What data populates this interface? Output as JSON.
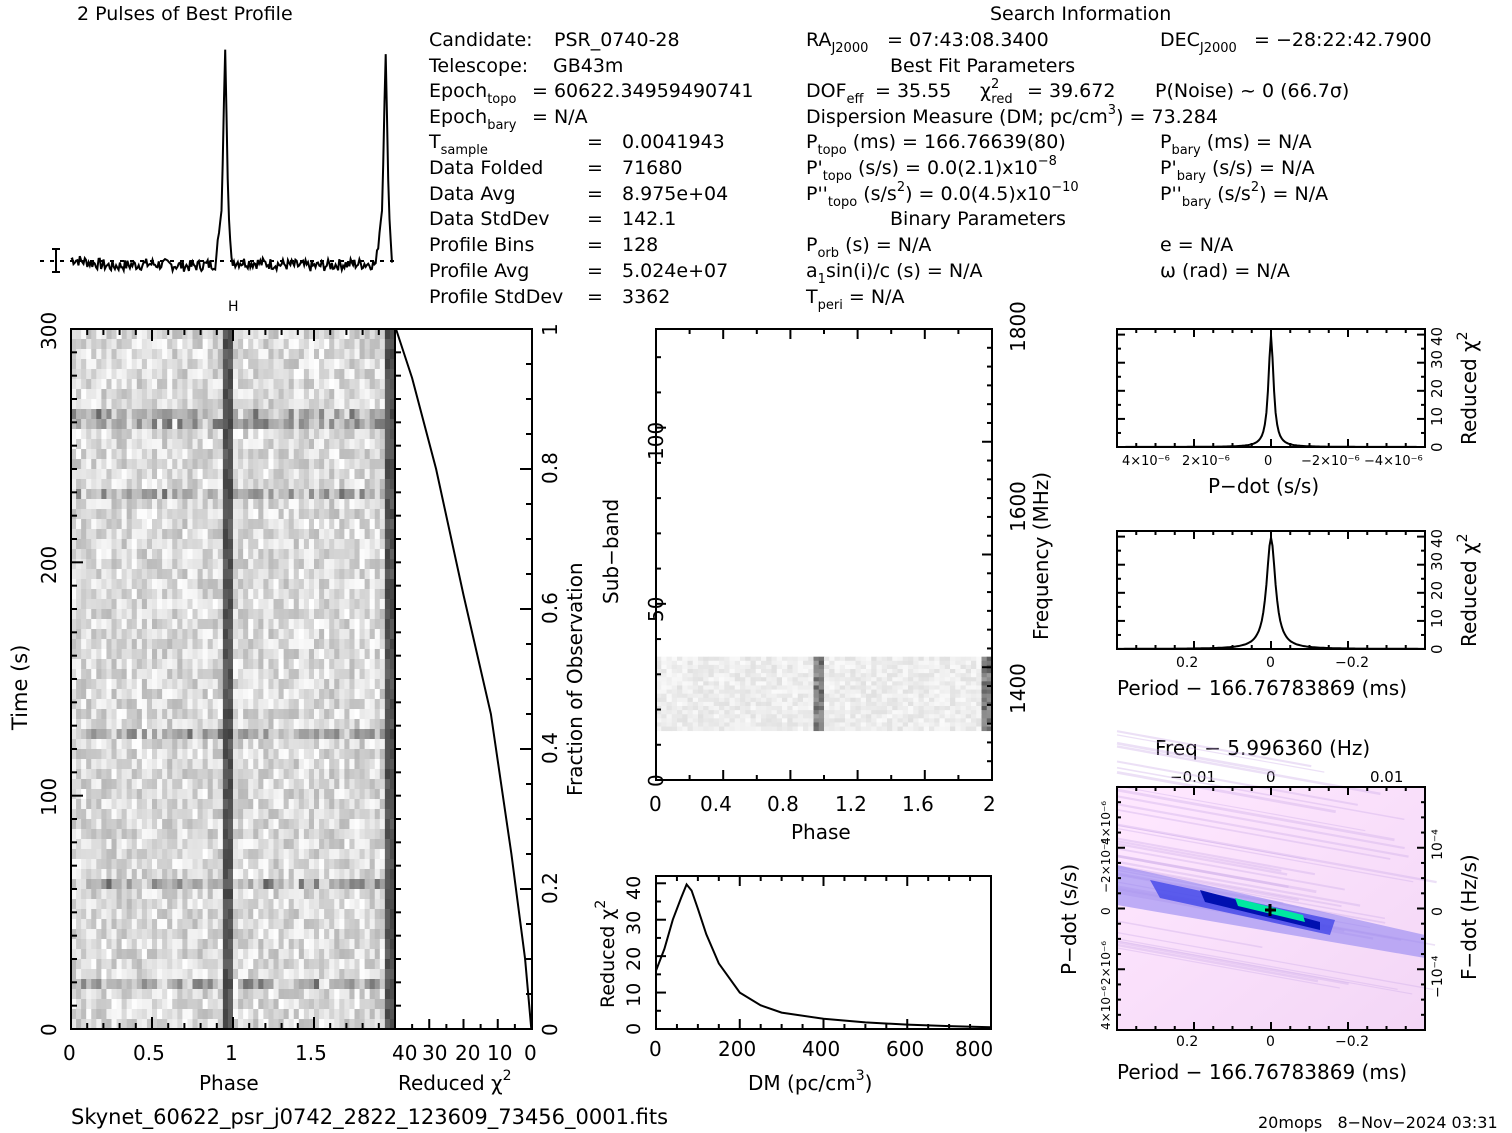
{
  "title_left": "2 Pulses of Best Profile",
  "title_right": "Search Information",
  "info": {
    "candidate_label": "Candidate:",
    "candidate": "PSR_0740-28",
    "telescope_label": "Telescope:",
    "telescope": "GB43m",
    "epoch_topo": "= 60622.34959490741",
    "epoch_bary": "= N/A",
    "t_sample": "0.0041943",
    "data_folded_label": "Data Folded",
    "data_folded": "71680",
    "data_avg_label": "Data Avg",
    "data_avg": "8.975e+04",
    "data_std_label": "Data StdDev",
    "data_std": "142.1",
    "profile_bins_label": "Profile Bins",
    "profile_bins": "128",
    "profile_avg_label": "Profile Avg",
    "profile_avg": "5.024e+07",
    "profile_std_label": "Profile StdDev",
    "profile_std": "3362",
    "ra": "= 07:43:08.3400",
    "dec": "= −28:22:42.7900",
    "best_fit_header": "Best Fit Parameters",
    "dof_eff": "= 35.55",
    "chi2_red": "= 39.672",
    "p_noise": "P(Noise) ~ 0   (66.7σ)",
    "dm_line": "Dispersion Measure (DM; pc/cm",
    "dm_value": ") = 73.284",
    "p_topo": " (ms) =  166.76639(80)",
    "p_bary": " (ms) = N/A",
    "pd_topo": " (s/s) = 0.0(2.1)x10",
    "pd_topo_exp": "−8",
    "pd_bary": " (s/s) = N/A",
    "pdd_topo": " (s/s",
    "pdd_topo2": ") = 0.0(4.5)x10",
    "pdd_topo_exp": "−10",
    "pdd_bary": " (s/s",
    "pdd_bary2": ") = N/A",
    "binary_header": "Binary Parameters",
    "p_orb": " (s) = N/A",
    "e": "e = N/A",
    "a1sini": "sin(i)/c (s) = N/A",
    "omega": "ω (rad) = N/A",
    "t_peri": " = N/A",
    "equals": "="
  },
  "footer_file": "Skynet_60622_psr_j0742_2822_123609_73456_0001.fits",
  "footer_right": "20mops   8−Nov−2024 03:31",
  "axes": {
    "phase": "Phase",
    "time": "Time (s)",
    "reduced_chi2": "Reduced χ",
    "fraction_obs": "Fraction of Observation",
    "sub_band": "Sub−band",
    "frequency": "Frequency (MHz)",
    "dm": "DM (pc/cm",
    "pdot": "P−dot (s/s)",
    "period": "Period − 166.76783869 (ms)",
    "freq_top": "Freq − 5.996360 (Hz)",
    "fdot": "F−dot (Hz/s)"
  },
  "chart_data": [
    {
      "type": "line",
      "name": "profile",
      "x": [
        0,
        0.25,
        0.5,
        0.75,
        0.9,
        0.94,
        0.96,
        0.98,
        1.0,
        1.25,
        1.5,
        1.75,
        1.9,
        1.94,
        1.96,
        1.98,
        2.0
      ],
      "y": [
        0.08,
        0.05,
        0.06,
        0.05,
        0.06,
        0.3,
        1.0,
        0.3,
        0.07,
        0.06,
        0.05,
        0.06,
        0.06,
        0.3,
        0.98,
        0.3,
        0.07
      ]
    },
    {
      "type": "heatmap",
      "name": "time-phase",
      "xlim": [
        0,
        2
      ],
      "ylim": [
        0,
        300
      ],
      "xticks": [
        "0",
        "0.5",
        "1",
        "1.5"
      ],
      "yticks": [
        "0",
        "100",
        "200",
        "300"
      ]
    },
    {
      "type": "line",
      "name": "reduced-chi2-vs-fraction",
      "xlim": [
        40,
        0
      ],
      "ylim": [
        0,
        1
      ],
      "xticks": [
        "40",
        "30",
        "20",
        "10",
        "0"
      ],
      "yticks": [
        "0",
        "0.2",
        "0.4",
        "0.6",
        "0.8",
        "1"
      ],
      "x": [
        0.2,
        2,
        6,
        12,
        20,
        28,
        35,
        39.7
      ],
      "y": [
        0,
        0.1,
        0.25,
        0.45,
        0.62,
        0.8,
        0.93,
        1.0
      ]
    },
    {
      "type": "heatmap",
      "name": "subband-phase",
      "xlim": [
        0,
        2
      ],
      "ylim": [
        0,
        128
      ],
      "xticks": [
        "0",
        "0.4",
        "0.8",
        "1.2",
        "1.6",
        "2"
      ],
      "yticks": [
        "0",
        "50",
        "100"
      ],
      "freq_ticks": [
        "1400",
        "1600",
        "1800"
      ],
      "band": [
        14,
        35
      ]
    },
    {
      "type": "line",
      "name": "dm-chi2",
      "xlim": [
        0,
        800
      ],
      "ylim": [
        0,
        40
      ],
      "xticks": [
        "0",
        "200",
        "400",
        "600",
        "800"
      ],
      "yticks": [
        "0",
        "10",
        "20",
        "30",
        "40"
      ],
      "x": [
        0,
        20,
        40,
        60,
        73,
        85,
        100,
        120,
        150,
        200,
        250,
        300,
        400,
        500,
        600,
        700,
        800
      ],
      "y": [
        16,
        22,
        30,
        36,
        39.7,
        38,
        33,
        26,
        18,
        10,
        6.5,
        4.5,
        2.8,
        1.8,
        1.2,
        0.8,
        0.5
      ]
    },
    {
      "type": "line",
      "name": "pdot-chi2",
      "xlim": [
        "4×10⁻⁶",
        "−4×10⁻⁶"
      ],
      "ylim": [
        0,
        40
      ],
      "xticks": [
        "4×10⁻⁶",
        "2×10⁻⁶",
        "0",
        "−2×10⁻⁶",
        "−4×10⁻⁶"
      ],
      "yticks": [
        "0",
        "10",
        "20",
        "30",
        "40"
      ]
    },
    {
      "type": "line",
      "name": "period-chi2",
      "xlim": [
        0.35,
        -0.35
      ],
      "ylim": [
        0,
        40
      ],
      "xticks": [
        "0.2",
        "0",
        "−0.2"
      ],
      "yticks": [
        "0",
        "10",
        "20",
        "30",
        "40"
      ]
    },
    {
      "type": "heatmap",
      "name": "period-pdot",
      "xticks": [
        "0.2",
        "0",
        "−0.2"
      ],
      "yticks_left": [
        "4×10⁻⁶",
        "−2×10⁻⁶",
        "0",
        "2×10⁻⁶",
        "4×10⁻⁶"
      ],
      "top_ticks": [
        "−0.01",
        "0",
        "0.01"
      ],
      "right_ticks": [
        "10⁻⁴",
        "0",
        "−10⁻⁴"
      ]
    }
  ]
}
